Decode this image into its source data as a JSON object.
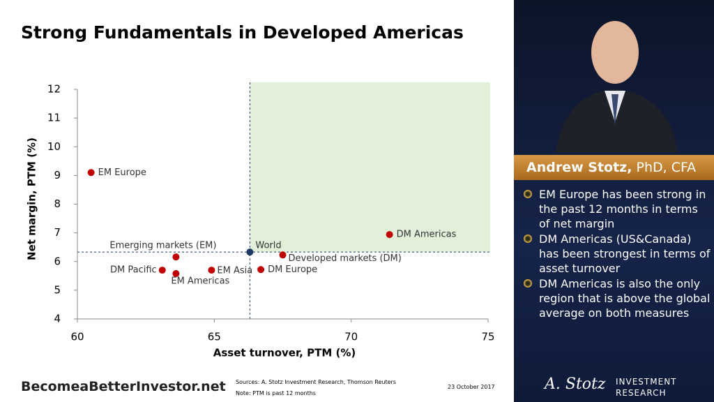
{
  "chart_data": {
    "type": "scatter",
    "title": "Strong Fundamentals in Developed Americas",
    "x_label": "Asset turnover, PTM (%)",
    "y_label": "Net margin, PTM (%)",
    "xlim": [
      60,
      75
    ],
    "xticks": [
      60,
      65,
      70,
      75
    ],
    "ylim": [
      4,
      12
    ],
    "yticks": [
      4,
      5,
      6,
      7,
      8,
      9,
      10,
      11,
      12
    ],
    "points": [
      {
        "label": "EM Europe",
        "x": 60.5,
        "y": 9.1,
        "color": "#c00000"
      },
      {
        "label": "DM Americas",
        "x": 71.4,
        "y": 6.94,
        "color": "#c00000"
      },
      {
        "label": "World",
        "x": 66.3,
        "y": 6.33,
        "color": "#1f3864"
      },
      {
        "label": "Developed markets (DM)",
        "x": 67.5,
        "y": 6.23,
        "color": "#c00000"
      },
      {
        "label": "Emerging markets (EM)",
        "x": 63.6,
        "y": 6.16,
        "color": "#c00000"
      },
      {
        "label": "DM Pacific",
        "x": 63.1,
        "y": 5.7,
        "color": "#c00000"
      },
      {
        "label": "EM Americas",
        "x": 63.6,
        "y": 5.58,
        "color": "#c00000"
      },
      {
        "label": "EM Asia",
        "x": 64.9,
        "y": 5.7,
        "color": "#c00000"
      },
      {
        "label": "DM Europe",
        "x": 66.7,
        "y": 5.72,
        "color": "#c00000"
      }
    ]
  },
  "sidebar": {
    "name_bold": "Andrew Stotz,",
    "name_rest": "PhD, CFA",
    "bullets": [
      "EM Europe has been strong in the past 12 months in terms of net margin",
      "DM Americas (US&Canada) has been strongest in terms of asset turnover",
      "DM Americas is also the only region that is above the global average on both measures"
    ]
  },
  "footer": {
    "site": "BecomeaBetterInvestor.net",
    "sources": "Sources: A. Stotz Investment Research, Thomson Reuters",
    "note": "Note:  PTM is past 12 months",
    "date": "23 October 2017",
    "logo_script": "A. Stotz",
    "logo_line1": "INVESTMENT",
    "logo_line2": "RESEARCH"
  }
}
